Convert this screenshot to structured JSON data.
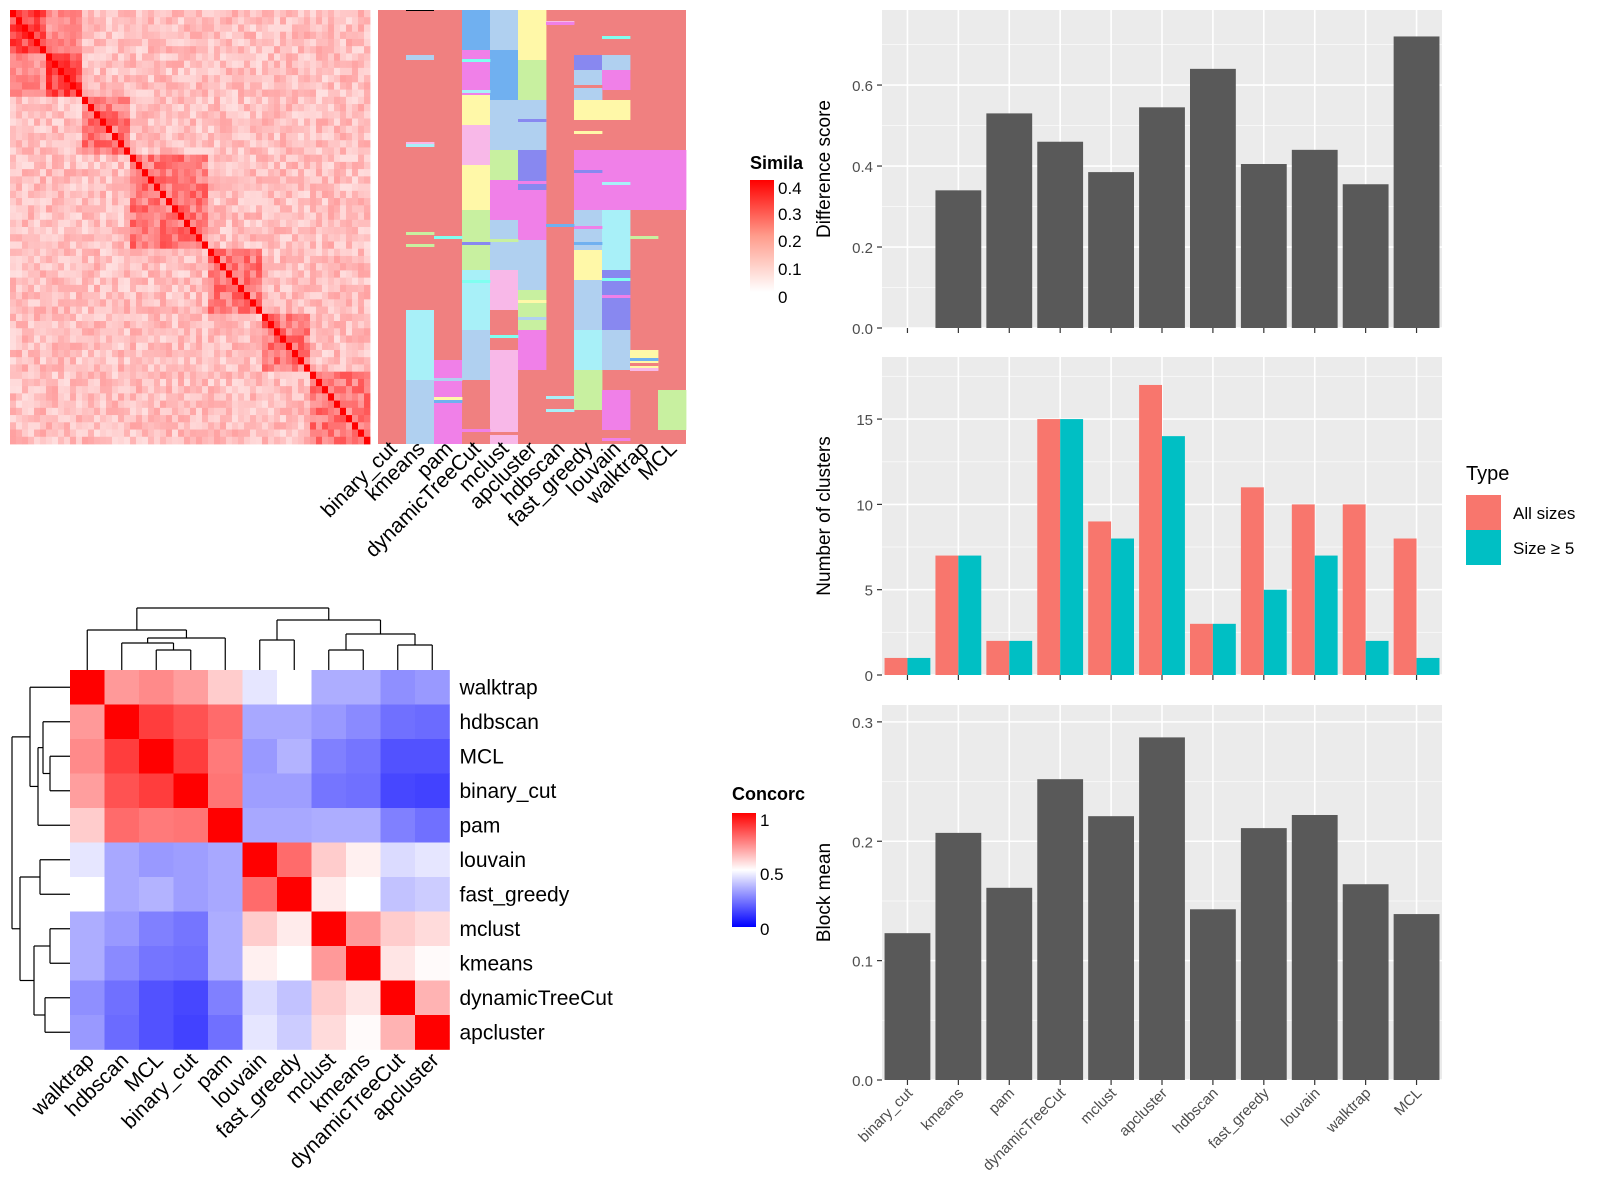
{
  "colors": {
    "panel_bg": "#EBEBEB",
    "bar_grey": "#595959",
    "all_sizes": "#F8766D",
    "size_ge5": "#00BFC4",
    "heat_red": "#FF0000",
    "heat_blue": "#0000FF",
    "grid": "#FFFFFF"
  },
  "similarity_legend": {
    "title": "Simila",
    "ticks": [
      "0.4",
      "0.3",
      "0.2",
      "0.1",
      "0"
    ]
  },
  "concordance_legend": {
    "title": "Concorc",
    "ticks": [
      "1",
      "0.5",
      "0"
    ]
  },
  "type_legend": {
    "title": "Type",
    "items": [
      "All sizes",
      "Size ≥ 5"
    ]
  },
  "membership_columns": [
    "binary_cut",
    "kmeans",
    "pam",
    "dynamicTreeCut",
    "mclust",
    "apcluster",
    "hdbscan",
    "fast_greedy",
    "louvain",
    "walktrap",
    "MCL"
  ],
  "chart_data": [
    {
      "type": "bar",
      "categories": [
        "binary_cut",
        "kmeans",
        "pam",
        "dynamicTreeCut",
        "mclust",
        "apcluster",
        "hdbscan",
        "fast_greedy",
        "louvain",
        "walktrap",
        "MCL"
      ],
      "values": [
        0,
        0.34,
        0.53,
        0.46,
        0.385,
        0.545,
        0.64,
        0.405,
        0.44,
        0.355,
        0.72
      ],
      "ylabel": "Difference score",
      "ylim": [
        0,
        0.75
      ],
      "yticks": [
        "0.0",
        "0.2",
        "0.4",
        "0.6"
      ],
      "grid": true
    },
    {
      "type": "bar",
      "categories": [
        "binary_cut",
        "kmeans",
        "pam",
        "dynamicTreeCut",
        "mclust",
        "apcluster",
        "hdbscan",
        "fast_greedy",
        "louvain",
        "walktrap",
        "MCL"
      ],
      "series": [
        {
          "name": "All sizes",
          "values": [
            1,
            7,
            2,
            15,
            9,
            17,
            3,
            11,
            10,
            10,
            8
          ]
        },
        {
          "name": "Size ≥ 5",
          "values": [
            1,
            7,
            2,
            15,
            8,
            14,
            3,
            5,
            7,
            2,
            1
          ]
        }
      ],
      "ylabel": "Number of clusters",
      "ylim": [
        0,
        17.8
      ],
      "yticks": [
        "0",
        "5",
        "10",
        "15"
      ],
      "legend": "right",
      "grid": true
    },
    {
      "type": "bar",
      "categories": [
        "binary_cut",
        "kmeans",
        "pam",
        "dynamicTreeCut",
        "mclust",
        "apcluster",
        "hdbscan",
        "fast_greedy",
        "louvain",
        "walktrap",
        "MCL"
      ],
      "values": [
        0.123,
        0.207,
        0.161,
        0.252,
        0.221,
        0.287,
        0.143,
        0.211,
        0.222,
        0.164,
        0.139
      ],
      "ylabel": "Block mean",
      "ylim": [
        0,
        0.3
      ],
      "yticks": [
        "0.0",
        "0.1",
        "0.2",
        "0.3"
      ],
      "grid": true
    },
    {
      "type": "heatmap",
      "rows": [
        "walktrap",
        "hdbscan",
        "MCL",
        "binary_cut",
        "pam",
        "louvain",
        "fast_greedy",
        "mclust",
        "kmeans",
        "dynamicTreeCut",
        "apcluster"
      ],
      "cols": [
        "walktrap",
        "hdbscan",
        "MCL",
        "binary_cut",
        "pam",
        "louvain",
        "fast_greedy",
        "mclust",
        "kmeans",
        "dynamicTreeCut",
        "apcluster"
      ],
      "values": [
        [
          1.0,
          0.7,
          0.73,
          0.69,
          0.6,
          0.45,
          0.5,
          0.34,
          0.34,
          0.28,
          0.3
        ],
        [
          0.7,
          1.0,
          0.88,
          0.84,
          0.79,
          0.33,
          0.33,
          0.3,
          0.27,
          0.22,
          0.21
        ],
        [
          0.73,
          0.88,
          1.0,
          0.88,
          0.76,
          0.3,
          0.35,
          0.25,
          0.23,
          0.16,
          0.16
        ],
        [
          0.69,
          0.84,
          0.88,
          1.0,
          0.77,
          0.31,
          0.31,
          0.23,
          0.22,
          0.14,
          0.13
        ],
        [
          0.6,
          0.79,
          0.76,
          0.77,
          1.0,
          0.33,
          0.33,
          0.34,
          0.34,
          0.25,
          0.22
        ],
        [
          0.45,
          0.33,
          0.3,
          0.31,
          0.33,
          1.0,
          0.79,
          0.6,
          0.53,
          0.43,
          0.45
        ],
        [
          0.5,
          0.33,
          0.35,
          0.31,
          0.33,
          0.79,
          1.0,
          0.54,
          0.5,
          0.38,
          0.4
        ],
        [
          0.34,
          0.3,
          0.25,
          0.23,
          0.34,
          0.6,
          0.54,
          1.0,
          0.7,
          0.6,
          0.57
        ],
        [
          0.34,
          0.27,
          0.23,
          0.22,
          0.34,
          0.53,
          0.5,
          0.7,
          1.0,
          0.55,
          0.51
        ],
        [
          0.28,
          0.22,
          0.16,
          0.14,
          0.25,
          0.43,
          0.38,
          0.6,
          0.55,
          1.0,
          0.65
        ],
        [
          0.3,
          0.21,
          0.16,
          0.13,
          0.22,
          0.45,
          0.4,
          0.57,
          0.51,
          0.65,
          1.0
        ]
      ],
      "colorscale": {
        "0": "#0000FF",
        "0.5": "#FFFFFF",
        "1": "#FF0000"
      }
    }
  ]
}
